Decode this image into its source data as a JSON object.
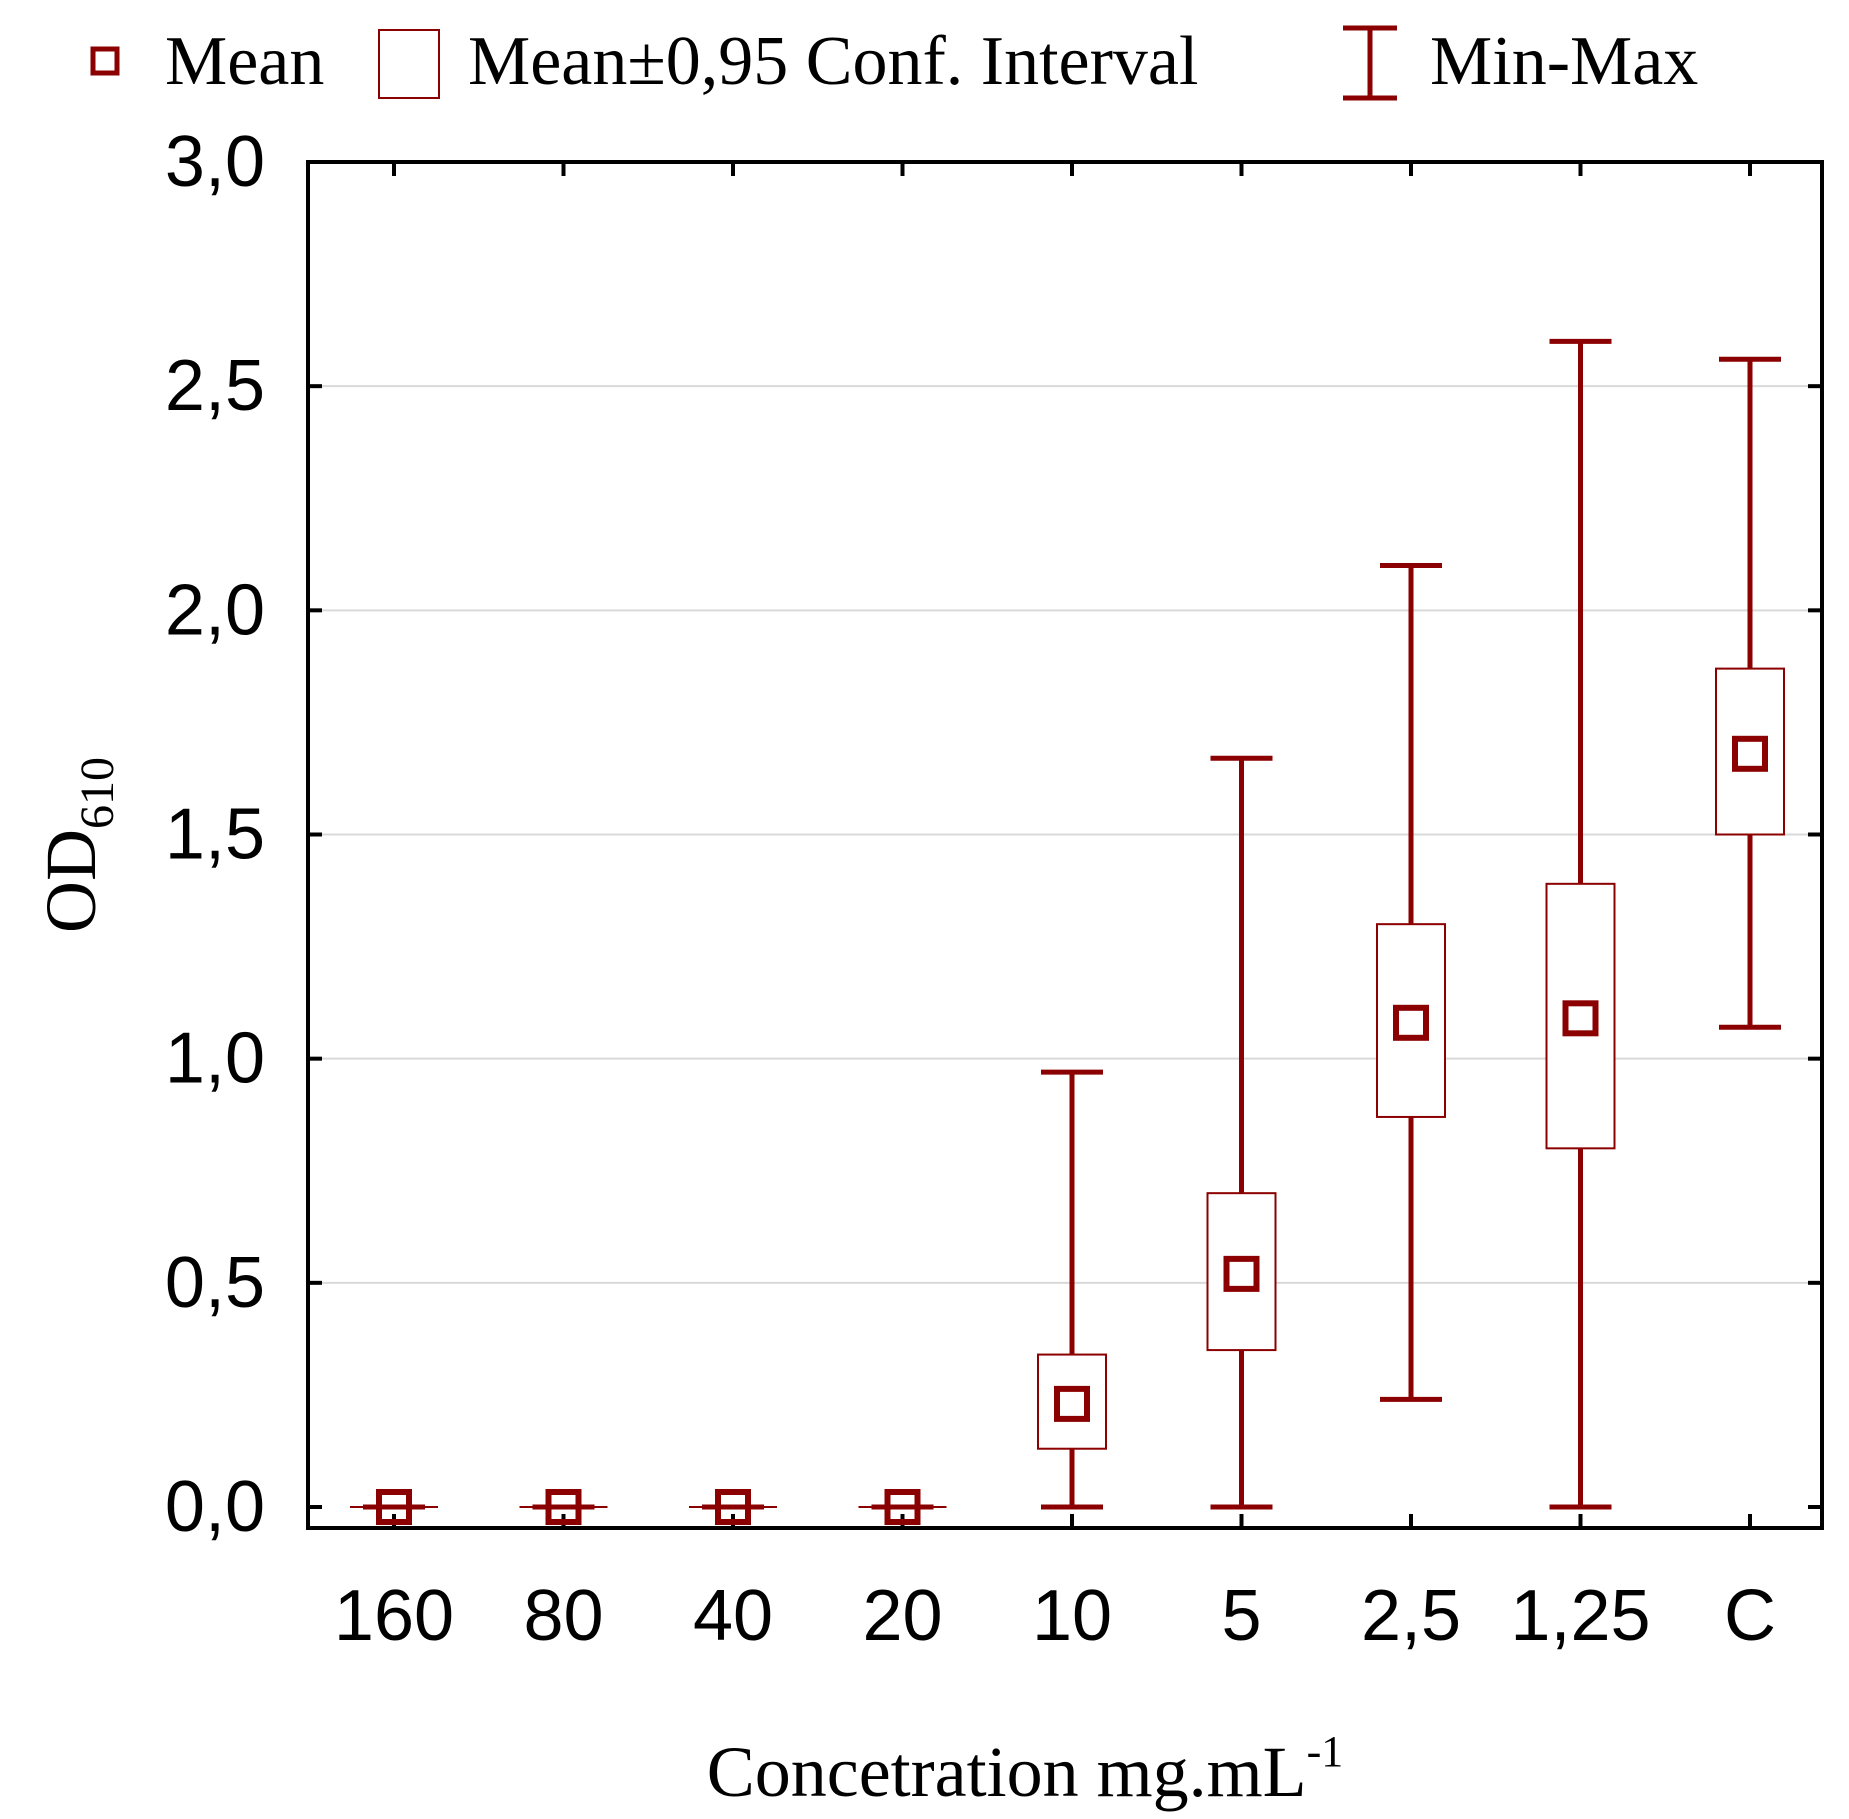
{
  "legend": {
    "mean_label": "Mean",
    "ci_label": "Mean±0,95 Conf. Interval",
    "minmax_label": "Min-Max"
  },
  "colors": {
    "series": "#8B0000",
    "axis": "#000000",
    "grid": "#d9d9d9",
    "background": "#ffffff"
  },
  "chart_data": {
    "type": "box",
    "title": "",
    "xlabel": "Concetration mg.mL",
    "xlabel_superscript": "-1",
    "ylabel": "OD",
    "ylabel_subscript": "610",
    "ylim": [
      0,
      3
    ],
    "y_ticks": [
      0,
      0.5,
      1.0,
      1.5,
      2.0,
      2.5,
      3.0
    ],
    "y_tick_labels": [
      "0,0",
      "0,5",
      "1,0",
      "1,5",
      "2,0",
      "2,5",
      "3,0"
    ],
    "grid": true,
    "legend_position": "top",
    "categories": [
      "160",
      "80",
      "40",
      "20",
      "10",
      "5",
      "2,5",
      "1,25",
      "C"
    ],
    "series": [
      {
        "name": "OD610",
        "mean": [
          0,
          0,
          0,
          0,
          0.23,
          0.52,
          1.08,
          1.09,
          1.68
        ],
        "ci_low": [
          0,
          0,
          0,
          0,
          0.13,
          0.35,
          0.87,
          0.8,
          1.5
        ],
        "ci_high": [
          0,
          0,
          0,
          0,
          0.34,
          0.7,
          1.3,
          1.39,
          1.87
        ],
        "min": [
          0,
          0,
          0,
          0,
          0.0,
          0.0,
          0.24,
          0.0,
          1.07
        ],
        "max": [
          0,
          0,
          0,
          0,
          0.97,
          1.67,
          2.1,
          2.6,
          2.56
        ]
      }
    ]
  }
}
